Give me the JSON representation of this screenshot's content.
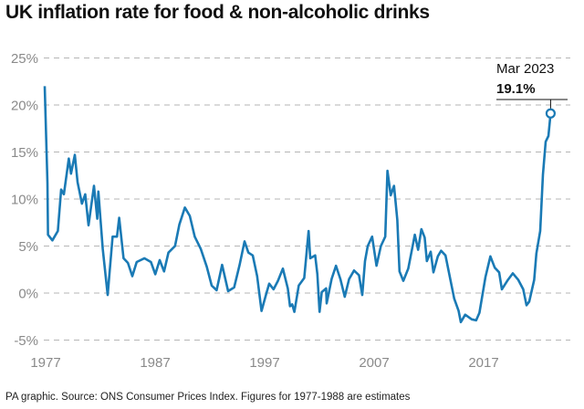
{
  "title": "UK inflation rate for food & non-alcoholic drinks",
  "source": "PA graphic. Source: ONS Consumer Prices Index. Figures for 1977-1988 are estimates",
  "chart_data": {
    "type": "line",
    "title": "UK inflation rate for food & non-alcoholic drinks",
    "xlabel": "",
    "ylabel": "",
    "xlim": [
      1977,
      2023.3
    ],
    "ylim": [
      -5,
      25
    ],
    "grid": true,
    "y_ticks": [
      {
        "value": 25,
        "label": "25%"
      },
      {
        "value": 20,
        "label": "20%"
      },
      {
        "value": 15,
        "label": "15%"
      },
      {
        "value": 10,
        "label": "10%"
      },
      {
        "value": 5,
        "label": "5%"
      },
      {
        "value": 0,
        "label": "0%"
      },
      {
        "value": -5,
        "label": "-5%"
      }
    ],
    "x_ticks": [
      {
        "value": 1977,
        "label": "1977"
      },
      {
        "value": 1987,
        "label": "1987"
      },
      {
        "value": 1997,
        "label": "1997"
      },
      {
        "value": 2007,
        "label": "2007"
      },
      {
        "value": 2017,
        "label": "2017"
      }
    ],
    "series_color": "#1a7ab5",
    "series": [
      {
        "points": [
          [
            1977.0,
            22
          ],
          [
            1977.25,
            11.7
          ],
          [
            1977.3,
            6.2
          ],
          [
            1977.7,
            5.6
          ],
          [
            1978.2,
            6.6
          ],
          [
            1978.5,
            11
          ],
          [
            1978.75,
            10.5
          ],
          [
            1979.2,
            14.3
          ],
          [
            1979.4,
            12.7
          ],
          [
            1979.75,
            14.7
          ],
          [
            1980.0,
            11.8
          ],
          [
            1980.4,
            9.5
          ],
          [
            1980.7,
            10.5
          ],
          [
            1981.0,
            7.2
          ],
          [
            1981.5,
            11.4
          ],
          [
            1981.8,
            7.9
          ],
          [
            1981.9,
            10.8
          ],
          [
            1982.3,
            4.7
          ],
          [
            1982.75,
            -0.2
          ],
          [
            1983.2,
            6
          ],
          [
            1983.6,
            6
          ],
          [
            1983.8,
            8
          ],
          [
            1984.2,
            3.7
          ],
          [
            1984.6,
            3.2
          ],
          [
            1985.0,
            1.8
          ],
          [
            1985.4,
            3.3
          ],
          [
            1986.1,
            3.7
          ],
          [
            1986.7,
            3.3
          ],
          [
            1987.1,
            2
          ],
          [
            1987.5,
            3.5
          ],
          [
            1987.9,
            2.3
          ],
          [
            1988.3,
            4.3
          ],
          [
            1988.9,
            5
          ],
          [
            1989.3,
            7.3
          ],
          [
            1989.8,
            9.1
          ],
          [
            1990.25,
            8.2
          ],
          [
            1990.7,
            6
          ],
          [
            1991.25,
            4.7
          ],
          [
            1991.8,
            2.8
          ],
          [
            1992.25,
            0.8
          ],
          [
            1992.7,
            0.3
          ],
          [
            1993.2,
            3
          ],
          [
            1993.75,
            0.2
          ],
          [
            1994.3,
            0.6
          ],
          [
            1994.8,
            3
          ],
          [
            1995.25,
            5.5
          ],
          [
            1995.6,
            4.3
          ],
          [
            1996.0,
            4
          ],
          [
            1996.4,
            1.8
          ],
          [
            1996.8,
            -1.9
          ],
          [
            1997.25,
            0
          ],
          [
            1997.5,
            1
          ],
          [
            1997.9,
            0.4
          ],
          [
            1998.3,
            1.3
          ],
          [
            1998.75,
            2.6
          ],
          [
            1999.2,
            0.5
          ],
          [
            1999.4,
            -1.4
          ],
          [
            1999.6,
            -1.2
          ],
          [
            1999.8,
            -2
          ],
          [
            2000.2,
            0.8
          ],
          [
            2000.7,
            1.6
          ],
          [
            2001.1,
            6.6
          ],
          [
            2001.25,
            3.7
          ],
          [
            2001.7,
            4
          ],
          [
            2001.9,
            2
          ],
          [
            2002.1,
            -2
          ],
          [
            2002.3,
            0.1
          ],
          [
            2002.7,
            0.5
          ],
          [
            2002.75,
            -1.1
          ],
          [
            2003.2,
            1.5
          ],
          [
            2003.6,
            2.9
          ],
          [
            2004.0,
            1.5
          ],
          [
            2004.4,
            -0.4
          ],
          [
            2004.8,
            1.5
          ],
          [
            2005.25,
            2.4
          ],
          [
            2005.7,
            1.9
          ],
          [
            2006.0,
            -0.2
          ],
          [
            2006.25,
            3.4
          ],
          [
            2006.5,
            5
          ],
          [
            2006.9,
            6
          ],
          [
            2007.3,
            2.9
          ],
          [
            2007.7,
            5
          ],
          [
            2008.1,
            6
          ],
          [
            2008.3,
            13
          ],
          [
            2008.6,
            10.4
          ],
          [
            2008.9,
            11.4
          ],
          [
            2009.2,
            7.8
          ],
          [
            2009.4,
            2.3
          ],
          [
            2009.75,
            1.3
          ],
          [
            2010.2,
            2.6
          ],
          [
            2010.6,
            5
          ],
          [
            2010.8,
            6.2
          ],
          [
            2011.1,
            4.6
          ],
          [
            2011.4,
            6.8
          ],
          [
            2011.7,
            5.9
          ],
          [
            2011.9,
            3.4
          ],
          [
            2012.25,
            4.4
          ],
          [
            2012.5,
            2.2
          ],
          [
            2012.9,
            3.9
          ],
          [
            2013.2,
            4.5
          ],
          [
            2013.6,
            4
          ],
          [
            2014.0,
            1.7
          ],
          [
            2014.4,
            -0.6
          ],
          [
            2014.8,
            -1.9
          ],
          [
            2015.0,
            -3.1
          ],
          [
            2015.4,
            -2.3
          ],
          [
            2016.0,
            -2.8
          ],
          [
            2016.4,
            -2.9
          ],
          [
            2016.7,
            -2.1
          ],
          [
            2017.25,
            1.7
          ],
          [
            2017.7,
            3.9
          ],
          [
            2018.1,
            2.7
          ],
          [
            2018.5,
            2.2
          ],
          [
            2018.75,
            0.4
          ],
          [
            2019.3,
            1.4
          ],
          [
            2019.75,
            2.1
          ],
          [
            2020.25,
            1.4
          ],
          [
            2020.7,
            0.4
          ],
          [
            2021.0,
            -1.3
          ],
          [
            2021.25,
            -0.9
          ],
          [
            2021.7,
            1.4
          ],
          [
            2021.9,
            4.2
          ],
          [
            2022.25,
            6.6
          ],
          [
            2022.5,
            12.6
          ],
          [
            2022.75,
            16.1
          ],
          [
            2023.0,
            16.7
          ],
          [
            2023.2,
            19.1
          ]
        ]
      }
    ],
    "annotation": {
      "label": "Mar 2023",
      "value_label": "19.1%",
      "x": 2023.2,
      "y": 19.1
    }
  }
}
